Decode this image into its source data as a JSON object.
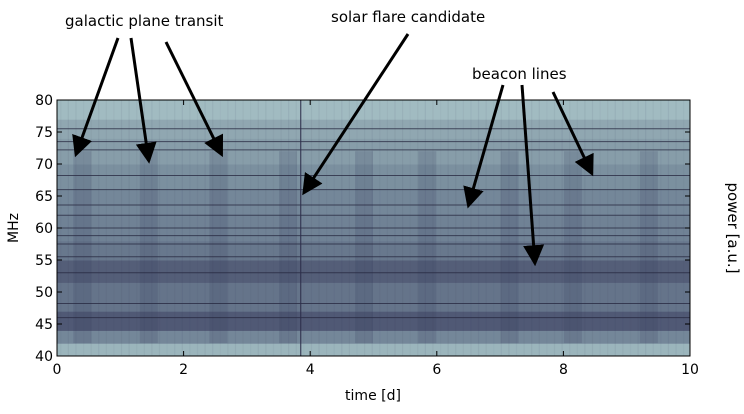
{
  "chart_data": {
    "type": "heatmap",
    "title": "",
    "xlabel": "time [d]",
    "ylabel": "MHz",
    "colorbar_label": "power [a.u.]",
    "xlim": [
      0,
      10
    ],
    "ylim": [
      40,
      80
    ],
    "x_ticks": [
      0,
      2,
      4,
      6,
      8,
      10
    ],
    "y_ticks": [
      40,
      45,
      50,
      55,
      60,
      65,
      70,
      75,
      80
    ],
    "colormap": {
      "low": "#3a3c5e",
      "mid": "#6d7f92",
      "high": "#b5d3d3"
    },
    "frequency_bands": [
      {
        "mhz_from": 40.0,
        "mhz_to": 42.0,
        "level": 0.82
      },
      {
        "mhz_from": 42.0,
        "mhz_to": 44.0,
        "level": 0.55
      },
      {
        "mhz_from": 44.0,
        "mhz_to": 47.0,
        "level": 0.22
      },
      {
        "mhz_from": 47.0,
        "mhz_to": 51.5,
        "level": 0.42
      },
      {
        "mhz_from": 51.5,
        "mhz_to": 55.0,
        "level": 0.25
      },
      {
        "mhz_from": 55.0,
        "mhz_to": 58.0,
        "level": 0.45
      },
      {
        "mhz_from": 58.0,
        "mhz_to": 62.0,
        "level": 0.52
      },
      {
        "mhz_from": 62.0,
        "mhz_to": 66.0,
        "level": 0.55
      },
      {
        "mhz_from": 66.0,
        "mhz_to": 70.0,
        "level": 0.6
      },
      {
        "mhz_from": 70.0,
        "mhz_to": 74.0,
        "level": 0.68
      },
      {
        "mhz_from": 74.0,
        "mhz_to": 77.0,
        "level": 0.74
      },
      {
        "mhz_from": 77.0,
        "mhz_to": 80.0,
        "level": 0.86
      }
    ],
    "dark_lines_mhz": [
      46.0,
      48.2,
      53.0,
      55.5,
      57.5,
      58.8,
      60.0,
      62.0,
      63.6,
      66.0,
      68.2,
      72.2,
      73.5,
      75.5
    ],
    "galactic_transits_days": [
      0.4,
      1.45,
      2.55,
      3.65,
      4.85,
      5.85,
      7.15,
      8.15,
      9.35
    ],
    "flare_time_days": 3.85,
    "annotations": [
      {
        "text": "galactic plane transit",
        "points_to": [
          {
            "t": 0.3,
            "mhz": 71.5
          },
          {
            "t": 1.45,
            "mhz": 70.5
          },
          {
            "t": 2.6,
            "mhz": 71.5
          }
        ]
      },
      {
        "text": "solar flare candidate",
        "points_to": [
          {
            "t": 3.9,
            "mhz": 65.5
          }
        ]
      },
      {
        "text": "beacon lines",
        "points_to": [
          {
            "t": 6.5,
            "mhz": 63.5
          },
          {
            "t": 7.55,
            "mhz": 54.5
          },
          {
            "t": 8.45,
            "mhz": 68.5
          }
        ]
      }
    ]
  }
}
